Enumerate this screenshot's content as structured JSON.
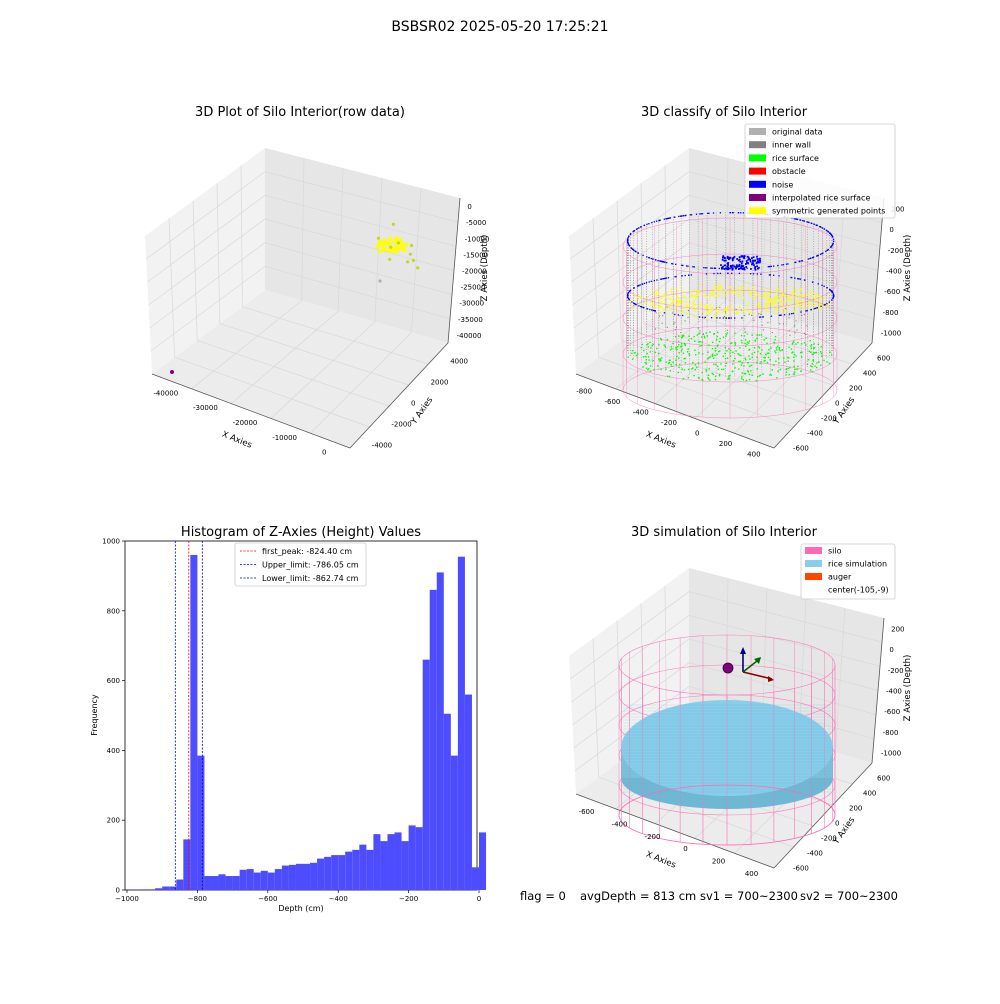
{
  "figure": {
    "suptitle": "BSBSR02 2025-05-20 17:25:21",
    "footer": {
      "flag": "flag = 0",
      "avg_depth": "avgDepth = 813 cm",
      "sv1": "sv1 = 700~2300",
      "sv2": "sv2 = 700~2300"
    }
  },
  "colors": {
    "original": "#b0b0b0",
    "inner_wall": "#808080",
    "rice_surface": "#00ff00",
    "obstacle": "#ff0000",
    "noise": "#0000ff",
    "interpolated": "#800080",
    "symmetric": "#ffff00",
    "silo": "#ff69b4",
    "rice_sim": "#87ceeb",
    "auger": "#ff4500",
    "hist_bar": "#4d4dff"
  },
  "chart_data": [
    {
      "type": "scatter",
      "title": "3D Plot of Silo Interior(row data)",
      "xlabel": "X Axies",
      "ylabel": "Y Axies",
      "zlabel": "Z Axies (Depth)",
      "x_ticks": [
        "-40000",
        "-30000",
        "-20000",
        "-10000",
        "0"
      ],
      "y_ticks": [
        "-4000",
        "-2000",
        "0",
        "2000",
        "4000"
      ],
      "z_ticks": [
        "0",
        "-5000",
        "-10000",
        "-15000",
        "-20000",
        "-25000",
        "-30000",
        "-35000",
        "-40000"
      ],
      "grid": true
    },
    {
      "type": "scatter",
      "title": "3D classify of Silo Interior",
      "xlabel": "X Axies",
      "ylabel": "Y Axies",
      "zlabel": "Z Axies (Depth)",
      "x_ticks": [
        "-800",
        "-600",
        "-400",
        "-200",
        "0",
        "200",
        "400"
      ],
      "y_ticks": [
        "-600",
        "-400",
        "-200",
        "0",
        "200",
        "400",
        "600"
      ],
      "z_ticks": [
        "200",
        "0",
        "-200",
        "-400",
        "-600",
        "-800",
        "-1000"
      ],
      "legend": [
        "original data",
        "inner wall",
        "rice surface",
        "obstacle",
        "noise",
        "interpolated rice surface",
        "symmetric generated points"
      ],
      "legend_position": "top-right",
      "grid": true
    },
    {
      "type": "bar",
      "title": "Histogram of Z-Axies (Height) Values",
      "xlabel": "Depth (cm)",
      "ylabel": "Frequency",
      "xlim": [
        -1000,
        0
      ],
      "ylim": [
        0,
        1000
      ],
      "x_ticks": [
        "−1000",
        "−800",
        "−600",
        "−400",
        "−200",
        "0"
      ],
      "y_ticks": [
        "0",
        "200",
        "400",
        "600",
        "800",
        "1000"
      ],
      "bin_edges_start": -960,
      "bin_width": 20,
      "values": [
        2,
        2,
        5,
        10,
        10,
        30,
        145,
        960,
        385,
        40,
        40,
        45,
        40,
        40,
        58,
        60,
        50,
        55,
        50,
        60,
        70,
        72,
        75,
        75,
        78,
        90,
        95,
        100,
        100,
        110,
        115,
        130,
        115,
        160,
        140,
        160,
        165,
        140,
        185,
        180,
        660,
        860,
        910,
        505,
        385,
        955,
        560,
        65,
        165
      ],
      "lines": [
        {
          "label": "first_peak: -824.40 cm",
          "x": -824.4,
          "color": "#ff0000"
        },
        {
          "label": "Upper_limit: -786.05 cm",
          "x": -786.05,
          "color": "#0000cc"
        },
        {
          "label": "Lower_limit: -862.74 cm",
          "x": -862.74,
          "color": "#0000cc"
        }
      ],
      "legend_position": "top-center"
    },
    {
      "type": "scatter",
      "title": "3D simulation of Silo Interior",
      "xlabel": "X Axies",
      "ylabel": "Y Axies",
      "zlabel": "Z Axies (Depth)",
      "x_ticks": [
        "-600",
        "-400",
        "-200",
        "0",
        "200",
        "400"
      ],
      "y_ticks": [
        "-600",
        "-400",
        "-200",
        "0",
        "200",
        "400",
        "600"
      ],
      "z_ticks": [
        "200",
        "0",
        "-200",
        "-400",
        "-600",
        "-800",
        "-1000"
      ],
      "legend": [
        "silo",
        "rice simulation",
        "auger",
        "center(-105,-9)"
      ],
      "legend_position": "top-right",
      "grid": true
    }
  ]
}
